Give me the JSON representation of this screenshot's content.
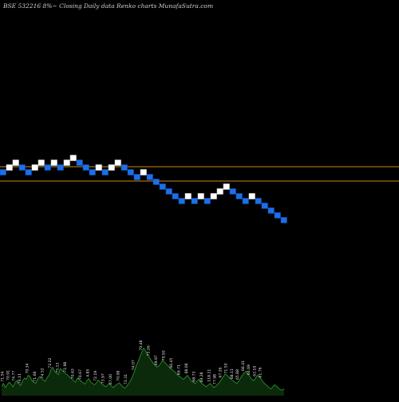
{
  "header": {
    "title": "BSE 532216  8%~  Closing Daily data  Renko  charts MunafaSutra.com"
  },
  "colors": {
    "background": "#000000",
    "up_brick": "#ffffff",
    "down_brick": "#1e6fe6",
    "level_line": "#c78a22",
    "volume_fill": "#0b2a0b",
    "volume_line": "#2e9a2e",
    "label_text": "#e6e6e6"
  },
  "chart_data": {
    "type": "renko",
    "reference_levels": [
      1,
      -2
    ],
    "bricks": [
      {
        "level": 0,
        "dir": "down"
      },
      {
        "level": 1,
        "dir": "up"
      },
      {
        "level": 2,
        "dir": "up"
      },
      {
        "level": 1,
        "dir": "down"
      },
      {
        "level": 0,
        "dir": "down"
      },
      {
        "level": 1,
        "dir": "up"
      },
      {
        "level": 2,
        "dir": "up"
      },
      {
        "level": 1,
        "dir": "down"
      },
      {
        "level": 2,
        "dir": "up"
      },
      {
        "level": 1,
        "dir": "down"
      },
      {
        "level": 2,
        "dir": "up"
      },
      {
        "level": 3,
        "dir": "up"
      },
      {
        "level": 2,
        "dir": "down"
      },
      {
        "level": 1,
        "dir": "down"
      },
      {
        "level": 0,
        "dir": "down"
      },
      {
        "level": 1,
        "dir": "up"
      },
      {
        "level": 0,
        "dir": "down"
      },
      {
        "level": 1,
        "dir": "up"
      },
      {
        "level": 2,
        "dir": "up"
      },
      {
        "level": 1,
        "dir": "down"
      },
      {
        "level": 0,
        "dir": "down"
      },
      {
        "level": -1,
        "dir": "down"
      },
      {
        "level": 0,
        "dir": "up"
      },
      {
        "level": -1,
        "dir": "down"
      },
      {
        "level": -2,
        "dir": "down"
      },
      {
        "level": -3,
        "dir": "down"
      },
      {
        "level": -4,
        "dir": "down"
      },
      {
        "level": -5,
        "dir": "down"
      },
      {
        "level": -6,
        "dir": "down"
      },
      {
        "level": -5,
        "dir": "up"
      },
      {
        "level": -6,
        "dir": "down"
      },
      {
        "level": -5,
        "dir": "up"
      },
      {
        "level": -6,
        "dir": "down"
      },
      {
        "level": -5,
        "dir": "up"
      },
      {
        "level": -4,
        "dir": "up"
      },
      {
        "level": -3,
        "dir": "up"
      },
      {
        "level": -4,
        "dir": "down"
      },
      {
        "level": -5,
        "dir": "down"
      },
      {
        "level": -6,
        "dir": "down"
      },
      {
        "level": -5,
        "dir": "up"
      },
      {
        "level": -6,
        "dir": "down"
      },
      {
        "level": -7,
        "dir": "down"
      },
      {
        "level": -8,
        "dir": "down"
      },
      {
        "level": -9,
        "dir": "down"
      },
      {
        "level": -10,
        "dir": "down"
      }
    ],
    "volume": {
      "values": [
        14,
        18,
        12,
        16,
        20,
        17,
        13,
        19,
        22,
        18,
        15,
        21,
        26,
        24,
        30,
        28,
        22,
        20,
        18,
        24,
        28,
        26,
        23,
        21,
        27,
        30,
        38,
        42,
        36,
        33,
        31,
        40,
        37,
        35,
        32,
        30,
        27,
        25,
        22,
        20,
        26,
        24,
        21,
        19,
        17,
        22,
        25,
        20,
        18,
        16,
        19,
        23,
        20,
        17,
        15,
        13,
        16,
        18,
        14,
        12,
        15,
        17,
        19,
        16,
        13,
        11,
        14,
        18,
        22,
        28,
        35,
        44,
        50,
        58,
        64,
        70,
        66,
        60,
        56,
        52,
        48,
        45,
        42,
        44,
        48,
        52,
        49,
        46,
        44,
        40,
        38,
        36,
        33,
        30,
        28,
        26,
        24,
        27,
        30,
        26,
        22,
        20,
        18,
        21,
        24,
        20,
        17,
        15,
        13,
        16,
        18,
        15,
        12,
        14,
        17,
        20,
        24,
        28,
        32,
        30,
        27,
        24,
        22,
        20,
        18,
        21,
        26,
        30,
        34,
        36,
        32,
        28,
        24,
        22,
        26,
        30,
        28,
        24,
        20,
        17,
        15,
        12,
        10,
        13,
        16,
        14,
        11,
        9,
        8,
        10
      ],
      "labels": [
        {
          "i": 1,
          "text": "71.54"
        },
        {
          "i": 4,
          "text": "70.91"
        },
        {
          "i": 7,
          "text": "74.77"
        },
        {
          "i": 10,
          "text": "70.11"
        },
        {
          "i": 14,
          "text": "70.34"
        },
        {
          "i": 18,
          "text": "71.66"
        },
        {
          "i": 22,
          "text": "74.52"
        },
        {
          "i": 26,
          "text": "72.22"
        },
        {
          "i": 30,
          "text": "75.13"
        },
        {
          "i": 34,
          "text": "71.98"
        },
        {
          "i": 38,
          "text": "70.63"
        },
        {
          "i": 42,
          "text": "70.67"
        },
        {
          "i": 46,
          "text": "4.85"
        },
        {
          "i": 50,
          "text": "72.19"
        },
        {
          "i": 54,
          "text": "73.97"
        },
        {
          "i": 58,
          "text": "67.00"
        },
        {
          "i": 62,
          "text": "70.08"
        },
        {
          "i": 66,
          "text": "72.31"
        },
        {
          "i": 70,
          "text": "74.07"
        },
        {
          "i": 74,
          "text": "70.48"
        },
        {
          "i": 78,
          "text": "73.26"
        },
        {
          "i": 82,
          "text": "69.97"
        },
        {
          "i": 86,
          "text": "70.93"
        },
        {
          "i": 90,
          "text": "66.45"
        },
        {
          "i": 94,
          "text": "69.71"
        },
        {
          "i": 98,
          "text": "68.08"
        },
        {
          "i": 102,
          "text": "68.73"
        },
        {
          "i": 106,
          "text": "69.28"
        },
        {
          "i": 110,
          "text": "118.11"
        },
        {
          "i": 113,
          "text": "77.98"
        },
        {
          "i": 116,
          "text": "67.26"
        },
        {
          "i": 119,
          "text": "71.50"
        },
        {
          "i": 122,
          "text": "68.11"
        },
        {
          "i": 125,
          "text": "65.88"
        },
        {
          "i": 128,
          "text": "66.41"
        },
        {
          "i": 131,
          "text": "64.69"
        },
        {
          "i": 134,
          "text": "63.10"
        },
        {
          "i": 137,
          "text": "61.76"
        }
      ]
    }
  }
}
